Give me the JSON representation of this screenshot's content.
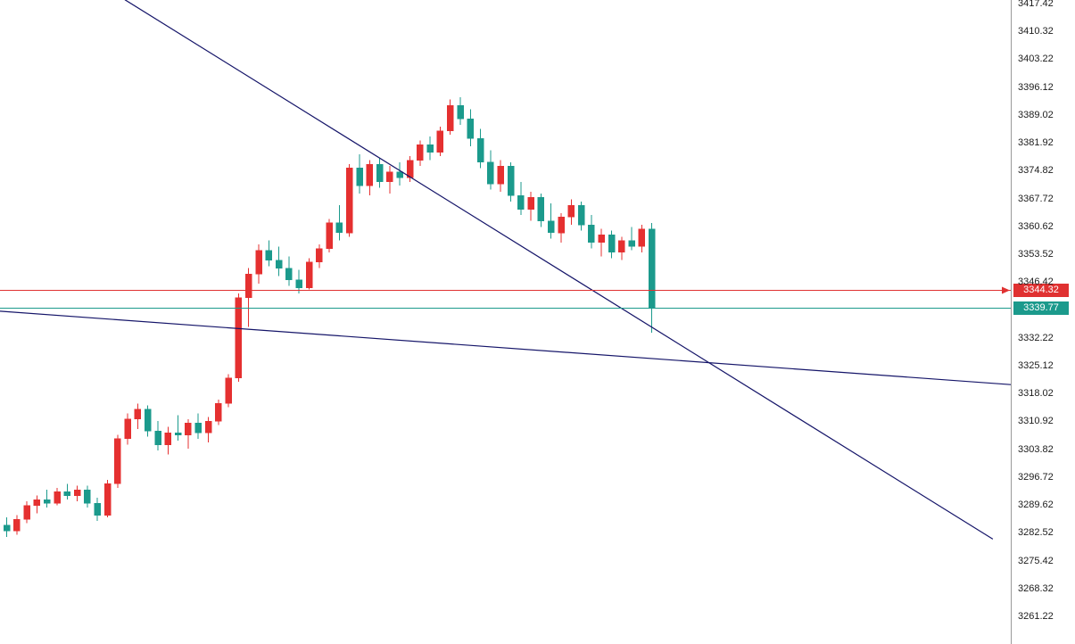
{
  "window": {
    "kind": "trading-terminal-chart"
  },
  "axis": {
    "tick_labels": [
      "3417.42",
      "3410.32",
      "3403.22",
      "3396.12",
      "3389.02",
      "3381.92",
      "3374.82",
      "3367.72",
      "3360.62",
      "3353.52",
      "3346.42",
      "3332.22",
      "3325.12",
      "3318.02",
      "3310.92",
      "3303.82",
      "3296.72",
      "3289.62",
      "3282.52",
      "3275.42",
      "3268.32",
      "3261.22"
    ],
    "text_color": "#1c1c1c",
    "separator_color": "#9a9a9a"
  },
  "price_markers": [
    {
      "label": "3344.32",
      "price": 3344.32,
      "color": "#e03131",
      "text_color": "#ffffff",
      "line_style": "solid",
      "name": "horizontal-price-line"
    },
    {
      "label": "3339.77",
      "price": 3339.77,
      "color": "#1b9a8c",
      "text_color": "#ffffff",
      "line_style": "solid",
      "name": "bid-price-line"
    }
  ],
  "chart_data": {
    "type": "candlestick",
    "title": "",
    "xlabel": "",
    "ylabel": "",
    "ylim": [
      3261.22,
      3417.42
    ],
    "y_tick_step": 7.1,
    "grid": false,
    "up_color": "#e53030",
    "down_color": "#1b9a8c",
    "trendline_color": "#151569",
    "candles_ohlc": [
      [
        3284.5,
        3286.5,
        3281.5,
        3283.0
      ],
      [
        3283.0,
        3287.0,
        3282.0,
        3286.0
      ],
      [
        3286.0,
        3290.5,
        3285.0,
        3289.5
      ],
      [
        3289.5,
        3292.0,
        3287.5,
        3291.0
      ],
      [
        3291.0,
        3293.5,
        3289.0,
        3290.0
      ],
      [
        3290.0,
        3294.0,
        3289.5,
        3293.0
      ],
      [
        3293.0,
        3295.0,
        3291.0,
        3292.0
      ],
      [
        3292.0,
        3294.5,
        3290.5,
        3293.5
      ],
      [
        3293.5,
        3294.5,
        3289.0,
        3290.0
      ],
      [
        3290.0,
        3291.5,
        3285.5,
        3287.0
      ],
      [
        3287.0,
        3296.0,
        3286.5,
        3295.0
      ],
      [
        3295.0,
        3307.5,
        3294.0,
        3306.5
      ],
      [
        3306.5,
        3313.0,
        3305.0,
        3311.5
      ],
      [
        3311.5,
        3315.5,
        3309.0,
        3314.0
      ],
      [
        3314.0,
        3315.0,
        3307.0,
        3308.5
      ],
      [
        3308.5,
        3311.0,
        3303.5,
        3305.0
      ],
      [
        3305.0,
        3309.5,
        3302.5,
        3308.0
      ],
      [
        3308.0,
        3312.5,
        3306.0,
        3307.5
      ],
      [
        3307.5,
        3311.5,
        3304.0,
        3310.5
      ],
      [
        3310.5,
        3313.0,
        3306.5,
        3308.0
      ],
      [
        3308.0,
        3312.0,
        3305.5,
        3311.0
      ],
      [
        3311.0,
        3316.5,
        3310.0,
        3315.5
      ],
      [
        3315.5,
        3323.0,
        3314.5,
        3322.0
      ],
      [
        3322.0,
        3343.5,
        3321.0,
        3342.5
      ],
      [
        3342.5,
        3350.0,
        3335.0,
        3348.5
      ],
      [
        3348.5,
        3356.0,
        3346.0,
        3354.5
      ],
      [
        3354.5,
        3357.0,
        3350.5,
        3352.0
      ],
      [
        3352.0,
        3355.5,
        3348.0,
        3350.0
      ],
      [
        3350.0,
        3353.0,
        3345.5,
        3347.0
      ],
      [
        3347.0,
        3349.5,
        3343.5,
        3345.0
      ],
      [
        3345.0,
        3352.5,
        3344.5,
        3351.5
      ],
      [
        3351.5,
        3356.0,
        3350.0,
        3355.0
      ],
      [
        3355.0,
        3362.5,
        3354.0,
        3361.5
      ],
      [
        3361.5,
        3366.0,
        3357.0,
        3359.0
      ],
      [
        3359.0,
        3376.5,
        3358.0,
        3375.5
      ],
      [
        3375.5,
        3379.0,
        3369.0,
        3371.0
      ],
      [
        3371.0,
        3377.5,
        3368.5,
        3376.5
      ],
      [
        3376.5,
        3378.0,
        3370.5,
        3372.0
      ],
      [
        3372.0,
        3376.0,
        3369.0,
        3374.5
      ],
      [
        3374.5,
        3377.0,
        3371.0,
        3373.0
      ],
      [
        3373.0,
        3378.5,
        3372.0,
        3377.5
      ],
      [
        3377.5,
        3382.5,
        3376.0,
        3381.5
      ],
      [
        3381.5,
        3383.5,
        3377.5,
        3379.5
      ],
      [
        3379.5,
        3386.0,
        3378.5,
        3385.0
      ],
      [
        3385.0,
        3393.0,
        3384.0,
        3391.5
      ],
      [
        3391.5,
        3393.5,
        3386.5,
        3388.0
      ],
      [
        3388.0,
        3390.5,
        3381.0,
        3383.0
      ],
      [
        3383.0,
        3385.5,
        3375.5,
        3377.0
      ],
      [
        3377.0,
        3380.0,
        3370.0,
        3371.5
      ],
      [
        3371.5,
        3377.5,
        3369.5,
        3376.0
      ],
      [
        3376.0,
        3377.0,
        3367.0,
        3368.5
      ],
      [
        3368.5,
        3372.0,
        3363.5,
        3365.0
      ],
      [
        3365.0,
        3369.5,
        3362.0,
        3368.0
      ],
      [
        3368.0,
        3369.0,
        3360.5,
        3362.0
      ],
      [
        3362.0,
        3366.5,
        3357.5,
        3359.0
      ],
      [
        3359.0,
        3364.0,
        3356.5,
        3363.0
      ],
      [
        3363.0,
        3367.5,
        3361.0,
        3366.0
      ],
      [
        3366.0,
        3367.0,
        3359.5,
        3361.0
      ],
      [
        3361.0,
        3363.5,
        3355.0,
        3356.5
      ],
      [
        3356.5,
        3360.0,
        3353.0,
        3358.5
      ],
      [
        3358.5,
        3359.5,
        3352.5,
        3354.0
      ],
      [
        3354.0,
        3358.0,
        3352.0,
        3357.0
      ],
      [
        3357.0,
        3360.5,
        3354.5,
        3355.5
      ],
      [
        3355.5,
        3361.0,
        3354.0,
        3360.0
      ],
      [
        3360.0,
        3361.5,
        3333.5,
        3339.77
      ]
    ],
    "trendlines": [
      {
        "x1_frac": 0.1236,
        "price1": 3418.4,
        "x2_frac": 0.9823,
        "price2": 3280.9
      },
      {
        "x1_frac": 0.0,
        "price1": 3339.0,
        "x2_frac": 1.0,
        "price2": 3320.3
      }
    ],
    "horizontal_lines": [
      3344.32,
      3339.77
    ],
    "legend": null,
    "annotations": []
  }
}
